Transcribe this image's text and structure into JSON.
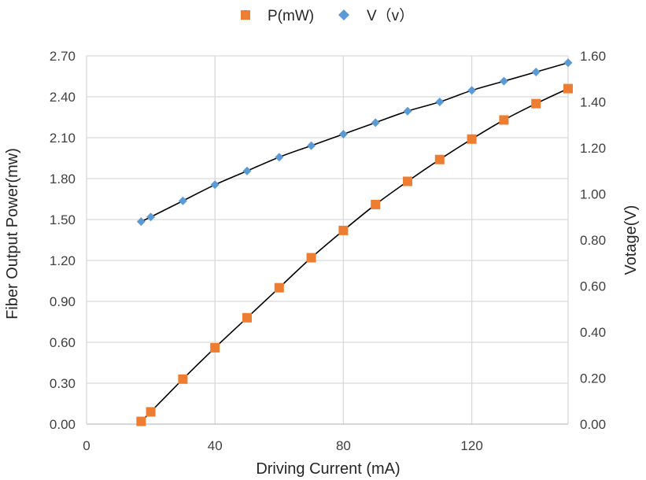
{
  "chart_data": {
    "type": "scatter",
    "x_axis": {
      "label": "Driving Current (mA)",
      "range": [
        0,
        150
      ],
      "ticks": [
        0,
        40,
        80,
        120
      ],
      "tick_labels": [
        "0",
        "40",
        "80",
        "120"
      ],
      "grid": true
    },
    "y_axis_left": {
      "label": "Fiber Output Power(mw)",
      "range": [
        0,
        2.7
      ],
      "ticks": [
        0,
        0.3,
        0.6,
        0.9,
        1.2,
        1.5,
        1.8,
        2.1,
        2.4,
        2.7
      ],
      "tick_labels": [
        "0.00",
        "0.30",
        "0.60",
        "0.90",
        "1.20",
        "1.50",
        "1.80",
        "2.10",
        "2.40",
        "2.70"
      ],
      "grid": true
    },
    "y_axis_right": {
      "label": "Votage(V)",
      "range": [
        0,
        1.6
      ],
      "ticks": [
        0,
        0.2,
        0.4,
        0.6,
        0.8,
        1.0,
        1.2,
        1.4,
        1.6
      ],
      "tick_labels": [
        "0.00",
        "0.20",
        "0.40",
        "0.60",
        "0.80",
        "1.00",
        "1.20",
        "1.40",
        "1.60"
      ]
    },
    "legend": {
      "placement": "top-center"
    },
    "series": [
      {
        "name": "P(mW)",
        "axis": "left",
        "marker": "square",
        "color": "#ED7D31",
        "trendline": true,
        "x": [
          17,
          20,
          30,
          40,
          50,
          60,
          70,
          80,
          90,
          100,
          110,
          120,
          130,
          140,
          150
        ],
        "y": [
          0.02,
          0.09,
          0.33,
          0.56,
          0.78,
          1.0,
          1.22,
          1.42,
          1.61,
          1.78,
          1.94,
          2.09,
          2.23,
          2.35,
          2.46
        ]
      },
      {
        "name": "V（v）",
        "axis": "right",
        "marker": "diamond",
        "color": "#5B9BD5",
        "trendline": true,
        "x": [
          17,
          20,
          30,
          40,
          50,
          60,
          70,
          80,
          90,
          100,
          110,
          120,
          130,
          140,
          150
        ],
        "y": [
          0.88,
          0.9,
          0.97,
          1.04,
          1.1,
          1.16,
          1.21,
          1.26,
          1.31,
          1.36,
          1.4,
          1.45,
          1.49,
          1.53,
          1.57
        ]
      }
    ]
  }
}
